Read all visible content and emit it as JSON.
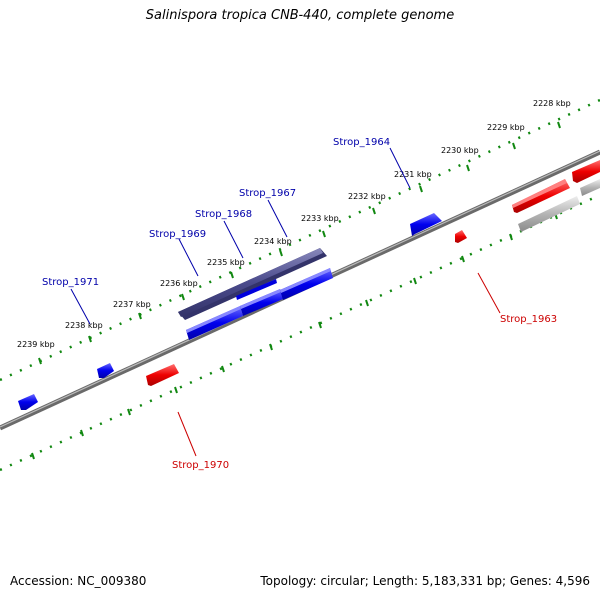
{
  "title": "Salinispora tropica CNB-440, complete genome",
  "accession": "Accession: NC_009380",
  "topology": "Topology: circular; Length: 5,183,331 bp; Genes: 4,596",
  "colors": {
    "forward_gene": "#0000ee",
    "reverse_gene": "#ee0000",
    "selected_gene": "#4b4b8c",
    "pseudo_gene": "#b4b4b4",
    "backbone": "#808080",
    "tick": "#118811",
    "forward_label": "#0000aa",
    "reverse_label": "#cc0000"
  },
  "scale_labels": [
    "2228 kbp",
    "2229 kbp",
    "2230 kbp",
    "2231 kbp",
    "2232 kbp",
    "2233 kbp",
    "2234 kbp",
    "2235 kbp",
    "2236 kbp",
    "2237 kbp",
    "2238 kbp",
    "2239 kbp"
  ],
  "gene_labels": {
    "forward": [
      "Strop_1964",
      "Strop_1967",
      "Strop_1968",
      "Strop_1969",
      "Strop_1971"
    ],
    "reverse": [
      "Strop_1963",
      "Strop_1970"
    ]
  }
}
